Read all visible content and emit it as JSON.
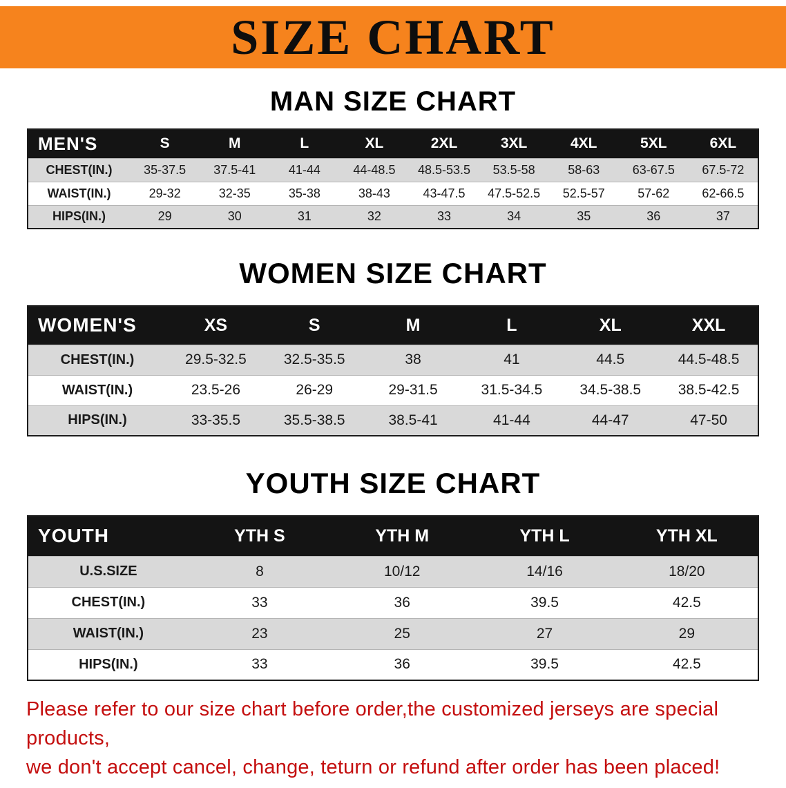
{
  "banner": {
    "title": "SIZE CHART",
    "bg_color": "#F6831D",
    "text_color": "#0d0d0d"
  },
  "sections": [
    {
      "heading": "MAN SIZE CHART",
      "table": {
        "corner": "MEN'S",
        "columns": [
          "S",
          "M",
          "L",
          "XL",
          "2XL",
          "3XL",
          "4XL",
          "5XL",
          "6XL"
        ],
        "rows": [
          {
            "label": "CHEST(IN.)",
            "values": [
              "35-37.5",
              "37.5-41",
              "41-44",
              "44-48.5",
              "48.5-53.5",
              "53.5-58",
              "58-63",
              "63-67.5",
              "67.5-72"
            ]
          },
          {
            "label": "WAIST(IN.)",
            "values": [
              "29-32",
              "32-35",
              "35-38",
              "38-43",
              "43-47.5",
              "47.5-52.5",
              "52.5-57",
              "57-62",
              "62-66.5"
            ]
          },
          {
            "label": "HIPS(IN.)",
            "values": [
              "29",
              "30",
              "31",
              "32",
              "33",
              "34",
              "35",
              "36",
              "37"
            ]
          }
        ]
      }
    },
    {
      "heading": "WOMEN SIZE CHART",
      "table": {
        "corner": "WOMEN'S",
        "columns": [
          "XS",
          "S",
          "M",
          "L",
          "XL",
          "XXL"
        ],
        "rows": [
          {
            "label": "CHEST(IN.)",
            "values": [
              "29.5-32.5",
              "32.5-35.5",
              "38",
              "41",
              "44.5",
              "44.5-48.5"
            ]
          },
          {
            "label": "WAIST(IN.)",
            "values": [
              "23.5-26",
              "26-29",
              "29-31.5",
              "31.5-34.5",
              "34.5-38.5",
              "38.5-42.5"
            ]
          },
          {
            "label": "HIPS(IN.)",
            "values": [
              "33-35.5",
              "35.5-38.5",
              "38.5-41",
              "41-44",
              "44-47",
              "47-50"
            ]
          }
        ]
      }
    },
    {
      "heading": "YOUTH SIZE CHART",
      "table": {
        "corner": "YOUTH",
        "columns": [
          "YTH S",
          "YTH M",
          "YTH L",
          "YTH XL"
        ],
        "rows": [
          {
            "label": "U.S.SIZE",
            "values": [
              "8",
              "10/12",
              "14/16",
              "18/20"
            ]
          },
          {
            "label": "CHEST(IN.)",
            "values": [
              "33",
              "36",
              "39.5",
              "42.5"
            ]
          },
          {
            "label": "WAIST(IN.)",
            "values": [
              "23",
              "25",
              "27",
              "29"
            ]
          },
          {
            "label": "HIPS(IN.)",
            "values": [
              "33",
              "36",
              "39.5",
              "42.5"
            ]
          }
        ]
      }
    }
  ],
  "footer": {
    "line1": "Please refer to our size chart before order,the customized jerseys are special products,",
    "line2": "we don't accept cancel, change, teturn or refund after order has been placed!",
    "color": "#c40f0f"
  }
}
